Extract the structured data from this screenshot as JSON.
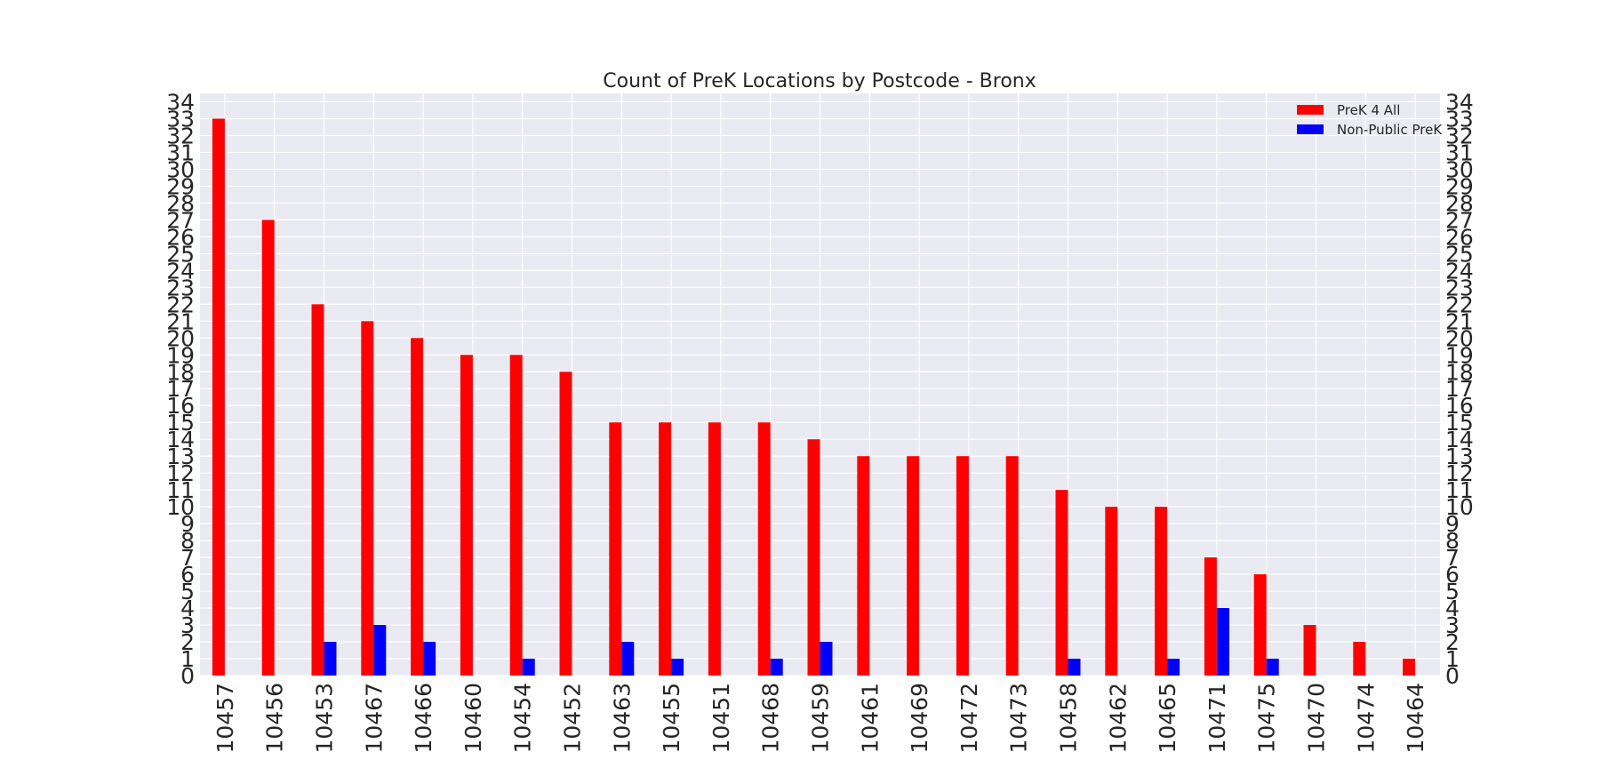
{
  "chart_data": {
    "type": "bar",
    "title": "Count of PreK Locations by Postcode - Bronx",
    "xlabel": "",
    "ylabel": "",
    "ylim": [
      0,
      34.5
    ],
    "yticks": [
      0,
      1,
      2,
      3,
      4,
      5,
      6,
      7,
      8,
      9,
      10,
      11,
      12,
      13,
      14,
      15,
      16,
      17,
      18,
      19,
      20,
      21,
      22,
      23,
      24,
      25,
      26,
      27,
      28,
      29,
      30,
      31,
      32,
      33,
      34
    ],
    "grid": true,
    "legend_position": "top-right",
    "categories": [
      "10457",
      "10456",
      "10453",
      "10467",
      "10466",
      "10460",
      "10454",
      "10452",
      "10463",
      "10455",
      "10451",
      "10468",
      "10459",
      "10461",
      "10469",
      "10472",
      "10473",
      "10458",
      "10462",
      "10465",
      "10471",
      "10475",
      "10470",
      "10474",
      "10464"
    ],
    "series": [
      {
        "name": "PreK 4 All",
        "color": "#ff0000",
        "values": [
          33,
          27,
          22,
          21,
          20,
          19,
          19,
          18,
          15,
          15,
          15,
          15,
          14,
          13,
          13,
          13,
          13,
          11,
          10,
          10,
          7,
          6,
          3,
          2,
          1
        ]
      },
      {
        "name": "Non-Public PreK",
        "color": "#0000ff",
        "values": [
          0,
          0,
          2,
          3,
          2,
          0,
          1,
          0,
          2,
          1,
          0,
          1,
          2,
          0,
          0,
          0,
          0,
          1,
          0,
          1,
          4,
          1,
          0,
          0,
          0
        ]
      }
    ]
  }
}
